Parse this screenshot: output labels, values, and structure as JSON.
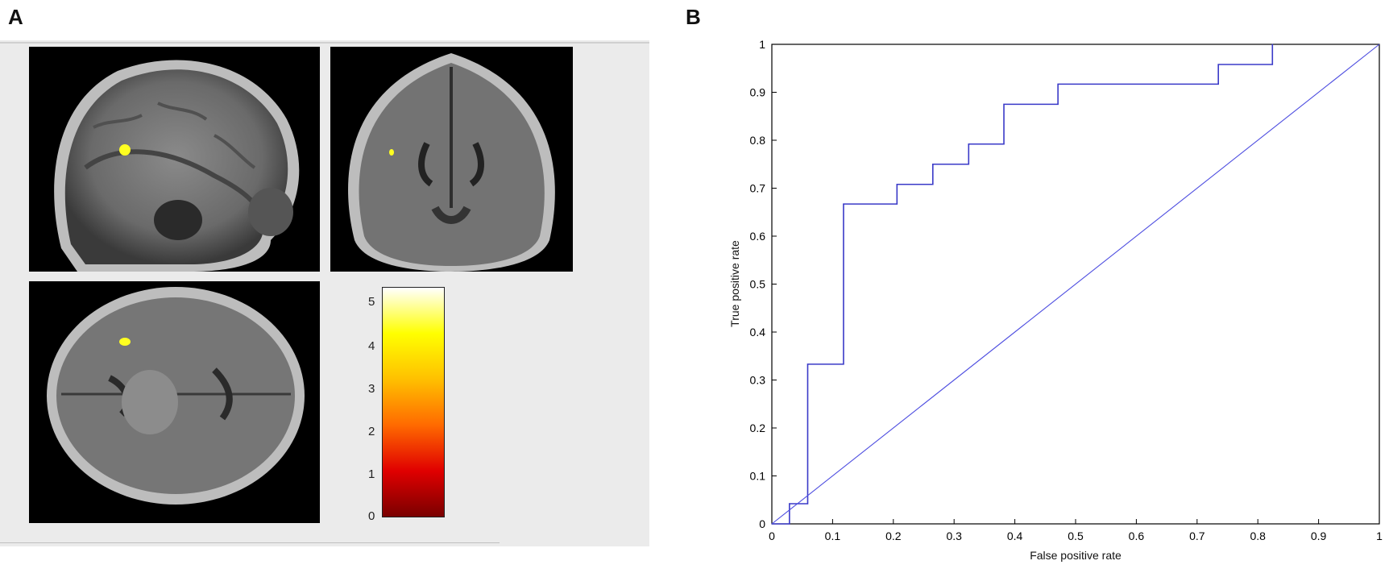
{
  "panels": {
    "a_label": "A",
    "b_label": "B"
  },
  "colorbar": {
    "ticks": [
      "0",
      "1",
      "2",
      "3",
      "4",
      "5"
    ],
    "colors": [
      "#7a0000",
      "#e00000",
      "#ff6a00",
      "#ffc000",
      "#ffff00",
      "#ffffff"
    ]
  },
  "brain_slices": [
    "sagittal",
    "coronal",
    "axial"
  ],
  "chart_data": {
    "type": "line",
    "title": "",
    "xlabel": "False positive rate",
    "ylabel": "True positive rate",
    "xlim": [
      0,
      1
    ],
    "ylim": [
      0,
      1
    ],
    "x_ticks": [
      "0",
      "0.1",
      "0.2",
      "0.3",
      "0.4",
      "0.5",
      "0.6",
      "0.7",
      "0.8",
      "0.9",
      "1"
    ],
    "y_ticks": [
      "0",
      "0.1",
      "0.2",
      "0.3",
      "0.4",
      "0.5",
      "0.6",
      "0.7",
      "0.8",
      "0.9",
      "1"
    ],
    "grid": false,
    "series": [
      {
        "type": "step",
        "color": "#3a3ac8",
        "x": [
          0,
          0.029,
          0.029,
          0.059,
          0.059,
          0.118,
          0.118,
          0.206,
          0.206,
          0.265,
          0.265,
          0.324,
          0.324,
          0.382,
          0.382,
          0.471,
          0.471,
          0.735,
          0.735,
          0.824,
          0.824
        ],
        "y": [
          0,
          0,
          0.042,
          0.042,
          0.333,
          0.333,
          0.667,
          0.667,
          0.708,
          0.708,
          0.75,
          0.75,
          0.792,
          0.792,
          0.875,
          0.875,
          0.917,
          0.917,
          0.958,
          0.958,
          1.0
        ]
      },
      {
        "type": "diagonal",
        "color": "#4d4de0",
        "x": [
          0,
          1
        ],
        "y": [
          0,
          1
        ]
      }
    ]
  }
}
